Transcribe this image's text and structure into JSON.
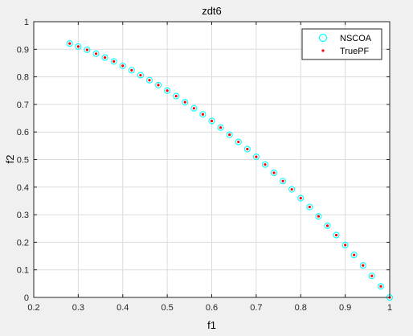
{
  "chart_data": {
    "type": "scatter",
    "title": "zdt6",
    "xlabel": "f1",
    "ylabel": "f2",
    "xlim": [
      0.2,
      1
    ],
    "ylim": [
      0,
      1
    ],
    "x_ticks": [
      "0.2",
      "0.3",
      "0.4",
      "0.5",
      "0.6",
      "0.7",
      "0.8",
      "0.9",
      "1"
    ],
    "y_ticks": [
      "0",
      "0.1",
      "0.2",
      "0.3",
      "0.4",
      "0.5",
      "0.6",
      "0.7",
      "0.8",
      "0.9",
      "1"
    ],
    "grid": true,
    "legend_position": "top-right",
    "series": [
      {
        "name": "NSCOA",
        "marker": "circle-open",
        "color": "#00ffff",
        "x": [
          0.2808,
          0.3,
          0.32,
          0.34,
          0.36,
          0.38,
          0.4,
          0.42,
          0.44,
          0.46,
          0.48,
          0.5,
          0.52,
          0.54,
          0.56,
          0.58,
          0.6,
          0.62,
          0.64,
          0.66,
          0.68,
          0.7,
          0.72,
          0.74,
          0.76,
          0.78,
          0.8,
          0.82,
          0.84,
          0.86,
          0.88,
          0.9,
          0.92,
          0.94,
          0.96,
          0.98,
          1.0
        ],
        "y": [
          0.921,
          0.91,
          0.898,
          0.884,
          0.87,
          0.856,
          0.84,
          0.824,
          0.806,
          0.788,
          0.77,
          0.75,
          0.73,
          0.708,
          0.686,
          0.664,
          0.64,
          0.616,
          0.59,
          0.564,
          0.538,
          0.51,
          0.482,
          0.452,
          0.422,
          0.392,
          0.36,
          0.328,
          0.294,
          0.26,
          0.226,
          0.19,
          0.154,
          0.116,
          0.078,
          0.04,
          0.0
        ]
      },
      {
        "name": "TruePF",
        "marker": "dot",
        "color": "#ff0000",
        "x": [
          0.2808,
          0.3,
          0.32,
          0.34,
          0.36,
          0.38,
          0.4,
          0.42,
          0.44,
          0.46,
          0.48,
          0.5,
          0.52,
          0.54,
          0.56,
          0.58,
          0.6,
          0.62,
          0.64,
          0.66,
          0.68,
          0.7,
          0.72,
          0.74,
          0.76,
          0.78,
          0.8,
          0.82,
          0.84,
          0.86,
          0.88,
          0.9,
          0.92,
          0.94,
          0.96,
          0.98,
          1.0
        ],
        "y": [
          0.921,
          0.91,
          0.898,
          0.884,
          0.87,
          0.856,
          0.84,
          0.824,
          0.806,
          0.788,
          0.77,
          0.75,
          0.73,
          0.708,
          0.686,
          0.664,
          0.64,
          0.616,
          0.59,
          0.564,
          0.538,
          0.51,
          0.482,
          0.452,
          0.422,
          0.392,
          0.36,
          0.328,
          0.294,
          0.26,
          0.226,
          0.19,
          0.154,
          0.116,
          0.078,
          0.04,
          0.0
        ]
      }
    ]
  }
}
